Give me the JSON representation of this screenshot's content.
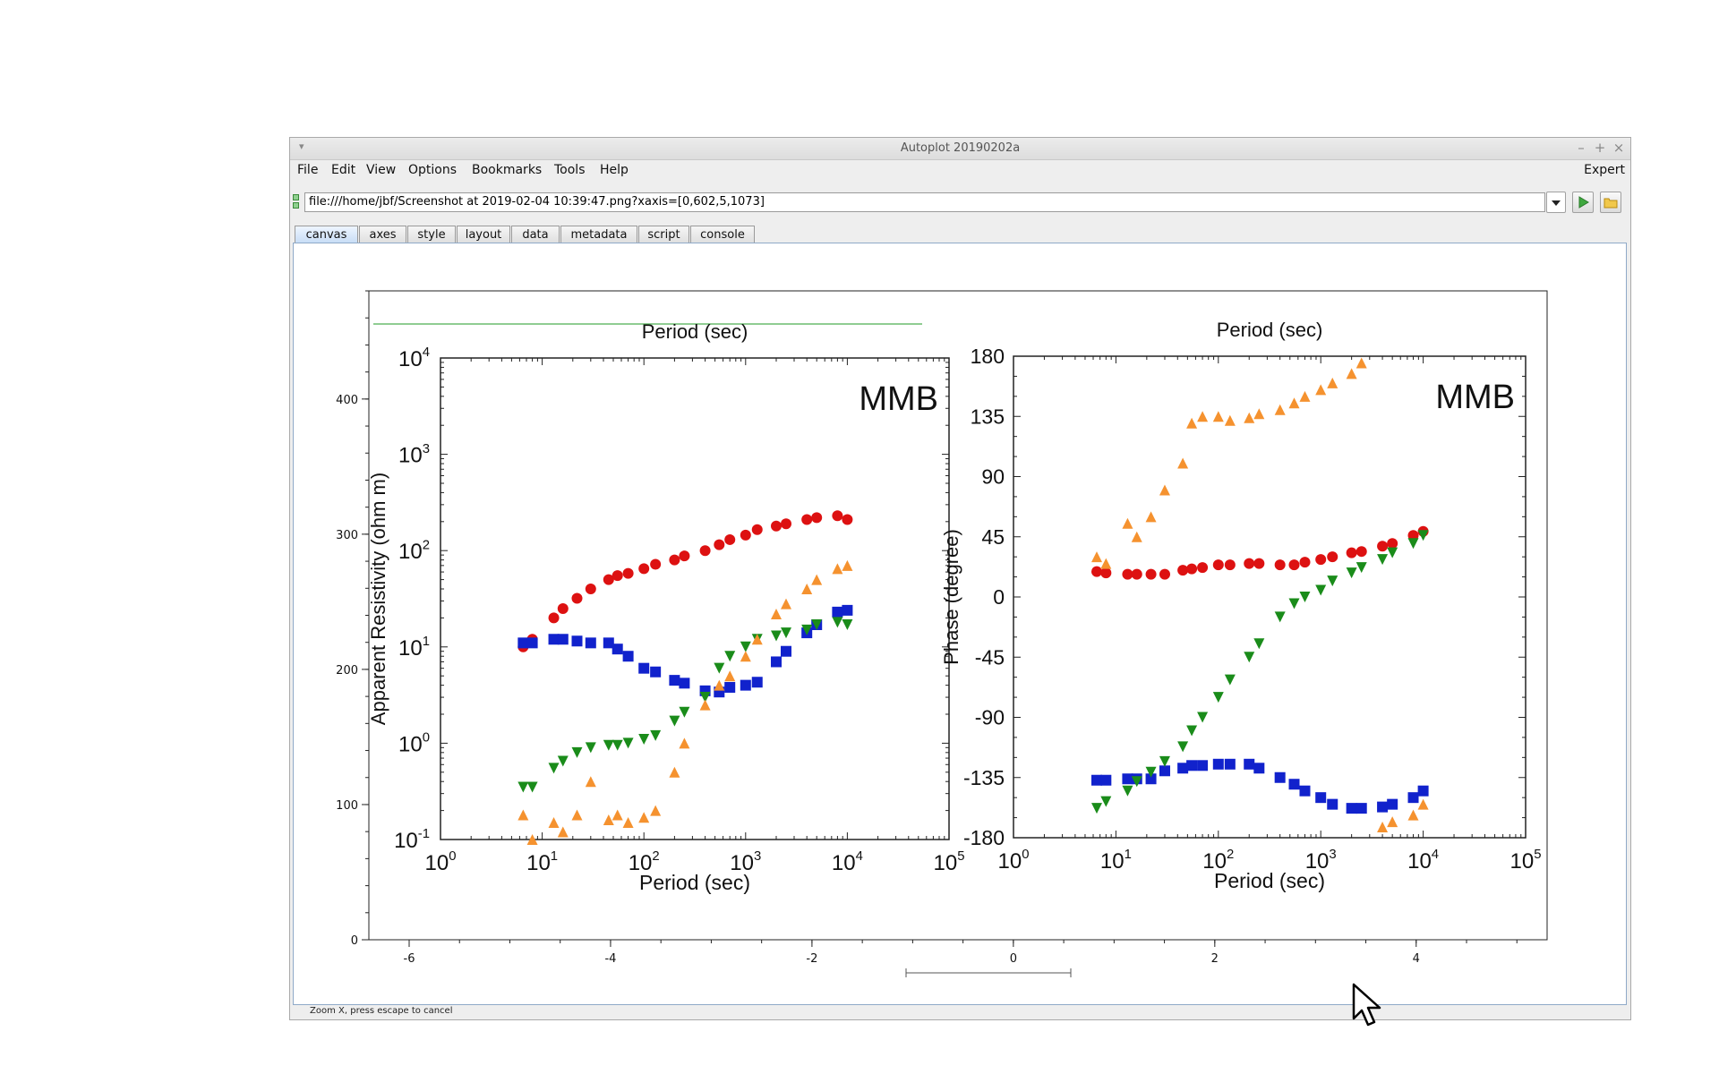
{
  "window": {
    "title": "Autoplot 20190202a",
    "controls": [
      "–",
      "+",
      "×"
    ]
  },
  "menubar": {
    "items": [
      "File",
      "Edit",
      "View",
      "Options",
      "Bookmarks",
      "Tools",
      "Help"
    ],
    "right_label": "Expert"
  },
  "url_bar": {
    "value": "file:///home/jbf/Screenshot at 2019-02-04 10:39:47.png?xaxis=[0,602,5,1073]"
  },
  "tabs": [
    {
      "label": "canvas",
      "selected": true
    },
    {
      "label": "axes"
    },
    {
      "label": "style"
    },
    {
      "label": "layout"
    },
    {
      "label": "data"
    },
    {
      "label": "metadata"
    },
    {
      "label": "script"
    },
    {
      "label": "console"
    }
  ],
  "status": {
    "text": "Zoom X, press escape to cancel"
  },
  "chart_data": {
    "type": "image",
    "x_ticks": [
      "-6",
      "-4",
      "-2",
      "0",
      "2",
      "4"
    ],
    "y_ticks": [
      "0",
      "100",
      "200",
      "300",
      "400"
    ],
    "xlim": [
      -6.4,
      5.3
    ],
    "ylim": [
      0,
      480
    ],
    "embedded_image": {
      "left_plot": {
        "type": "scatter",
        "title": "MMB",
        "top_label": "Period (sec)",
        "xlabel": "Period (sec)",
        "ylabel": "Apparent Resistivity (ohm m)",
        "x_scale": "log",
        "y_scale": "log",
        "x_ticks": [
          "10^0",
          "10^1",
          "10^2",
          "10^3",
          "10^4",
          "10^5"
        ],
        "y_ticks": [
          "10^-1",
          "10^0",
          "10^1",
          "10^2",
          "10^3",
          "10^4"
        ],
        "series": [
          {
            "color": "#dd1111",
            "marker": "circle",
            "points": [
              [
                6.5,
                10
              ],
              [
                8,
                12
              ],
              [
                13,
                20
              ],
              [
                16,
                25
              ],
              [
                22,
                32
              ],
              [
                30,
                40
              ],
              [
                45,
                50
              ],
              [
                55,
                55
              ],
              [
                70,
                58
              ],
              [
                100,
                65
              ],
              [
                130,
                72
              ],
              [
                200,
                80
              ],
              [
                250,
                88
              ],
              [
                400,
                100
              ],
              [
                550,
                115
              ],
              [
                700,
                130
              ],
              [
                1000,
                145
              ],
              [
                1300,
                165
              ],
              [
                2000,
                180
              ],
              [
                2500,
                190
              ],
              [
                4000,
                210
              ],
              [
                5000,
                220
              ],
              [
                8000,
                230
              ],
              [
                10000,
                210
              ]
            ]
          },
          {
            "color": "#1122cc",
            "marker": "square",
            "points": [
              [
                6.5,
                11
              ],
              [
                8,
                11
              ],
              [
                13,
                12
              ],
              [
                16,
                12
              ],
              [
                22,
                11.5
              ],
              [
                30,
                11
              ],
              [
                45,
                11
              ],
              [
                55,
                9.5
              ],
              [
                70,
                8
              ],
              [
                100,
                6
              ],
              [
                130,
                5.5
              ],
              [
                200,
                4.5
              ],
              [
                250,
                4.2
              ],
              [
                400,
                3.5
              ],
              [
                550,
                3.4
              ],
              [
                700,
                3.8
              ],
              [
                1000,
                4.0
              ],
              [
                1300,
                4.3
              ],
              [
                2000,
                7
              ],
              [
                2500,
                9
              ],
              [
                4000,
                14
              ],
              [
                5000,
                17
              ],
              [
                8000,
                23
              ],
              [
                10000,
                24
              ]
            ]
          },
          {
            "color": "#1a8c1a",
            "marker": "triangle-down",
            "points": [
              [
                6.5,
                0.35
              ],
              [
                8,
                0.35
              ],
              [
                13,
                0.55
              ],
              [
                16,
                0.65
              ],
              [
                22,
                0.8
              ],
              [
                30,
                0.9
              ],
              [
                45,
                0.95
              ],
              [
                55,
                0.95
              ],
              [
                70,
                1.0
              ],
              [
                100,
                1.1
              ],
              [
                130,
                1.2
              ],
              [
                200,
                1.7
              ],
              [
                250,
                2.1
              ],
              [
                400,
                3.0
              ],
              [
                550,
                6
              ],
              [
                700,
                8
              ],
              [
                1000,
                10
              ],
              [
                1300,
                12
              ],
              [
                2000,
                13
              ],
              [
                2500,
                14
              ],
              [
                4000,
                15
              ],
              [
                5000,
                17
              ],
              [
                8000,
                18
              ],
              [
                10000,
                17
              ]
            ]
          },
          {
            "color": "#f5922f",
            "marker": "triangle-up",
            "points": [
              [
                6.5,
                0.18
              ],
              [
                8,
                0.1
              ],
              [
                13,
                0.15
              ],
              [
                16,
                0.12
              ],
              [
                22,
                0.18
              ],
              [
                30,
                0.4
              ],
              [
                45,
                0.16
              ],
              [
                55,
                0.18
              ],
              [
                70,
                0.15
              ],
              [
                100,
                0.17
              ],
              [
                130,
                0.2
              ],
              [
                200,
                0.5
              ],
              [
                250,
                1.0
              ],
              [
                400,
                2.5
              ],
              [
                550,
                4
              ],
              [
                700,
                5
              ],
              [
                1000,
                8
              ],
              [
                1300,
                12
              ],
              [
                2000,
                22
              ],
              [
                2500,
                28
              ],
              [
                4000,
                40
              ],
              [
                5000,
                50
              ],
              [
                8000,
                65
              ],
              [
                10000,
                70
              ]
            ]
          }
        ]
      },
      "right_plot": {
        "type": "scatter",
        "title": "MMB",
        "top_label": "Period (sec)",
        "xlabel": "Period (sec)",
        "ylabel": "Phase (degree)",
        "x_scale": "log",
        "x_ticks": [
          "10^0",
          "10^1",
          "10^2",
          "10^3",
          "10^4",
          "10^5"
        ],
        "y_ticks": [
          "180",
          "135",
          "90",
          "45",
          "0",
          "-45",
          "-90",
          "-135",
          "-180"
        ],
        "ylim": [
          -180,
          180
        ],
        "series": [
          {
            "color": "#dd1111",
            "marker": "circle",
            "points": [
              [
                6.5,
                19
              ],
              [
                8,
                18
              ],
              [
                13,
                17
              ],
              [
                16,
                17
              ],
              [
                22,
                17
              ],
              [
                30,
                17
              ],
              [
                45,
                20
              ],
              [
                55,
                21
              ],
              [
                70,
                22
              ],
              [
                100,
                24
              ],
              [
                130,
                24
              ],
              [
                200,
                25
              ],
              [
                250,
                25
              ],
              [
                400,
                24
              ],
              [
                550,
                24
              ],
              [
                700,
                26
              ],
              [
                1000,
                28
              ],
              [
                1300,
                30
              ],
              [
                2000,
                33
              ],
              [
                2500,
                34
              ],
              [
                4000,
                38
              ],
              [
                5000,
                40
              ],
              [
                8000,
                46
              ],
              [
                10000,
                49
              ]
            ]
          },
          {
            "color": "#1122cc",
            "marker": "square",
            "points": [
              [
                6.5,
                -137
              ],
              [
                8,
                -137
              ],
              [
                13,
                -136
              ],
              [
                16,
                -136
              ],
              [
                22,
                -136
              ],
              [
                30,
                -130
              ],
              [
                45,
                -128
              ],
              [
                55,
                -126
              ],
              [
                70,
                -126
              ],
              [
                100,
                -125
              ],
              [
                130,
                -125
              ],
              [
                200,
                -125
              ],
              [
                250,
                -128
              ],
              [
                400,
                -135
              ],
              [
                550,
                -140
              ],
              [
                700,
                -145
              ],
              [
                1000,
                -150
              ],
              [
                1300,
                -155
              ],
              [
                2000,
                -158
              ],
              [
                2500,
                -158
              ],
              [
                4000,
                -157
              ],
              [
                5000,
                -155
              ],
              [
                8000,
                -150
              ],
              [
                10000,
                -145
              ]
            ]
          },
          {
            "color": "#1a8c1a",
            "marker": "triangle-down",
            "points": [
              [
                6.5,
                -158
              ],
              [
                8,
                -153
              ],
              [
                13,
                -145
              ],
              [
                16,
                -138
              ],
              [
                22,
                -131
              ],
              [
                30,
                -123
              ],
              [
                45,
                -112
              ],
              [
                55,
                -100
              ],
              [
                70,
                -90
              ],
              [
                100,
                -75
              ],
              [
                130,
                -62
              ],
              [
                200,
                -45
              ],
              [
                250,
                -35
              ],
              [
                400,
                -15
              ],
              [
                550,
                -5
              ],
              [
                700,
                0
              ],
              [
                1000,
                5
              ],
              [
                1300,
                12
              ],
              [
                2000,
                18
              ],
              [
                2500,
                22
              ],
              [
                4000,
                28
              ],
              [
                5000,
                33
              ],
              [
                8000,
                40
              ],
              [
                10000,
                46
              ]
            ]
          },
          {
            "color": "#f5922f",
            "marker": "triangle-up",
            "points": [
              [
                6.5,
                30
              ],
              [
                8,
                25
              ],
              [
                13,
                55
              ],
              [
                16,
                45
              ],
              [
                22,
                60
              ],
              [
                30,
                80
              ],
              [
                45,
                100
              ],
              [
                55,
                130
              ],
              [
                70,
                135
              ],
              [
                100,
                135
              ],
              [
                130,
                132
              ],
              [
                200,
                134
              ],
              [
                250,
                137
              ],
              [
                400,
                140
              ],
              [
                550,
                145
              ],
              [
                700,
                150
              ],
              [
                1000,
                155
              ],
              [
                1300,
                160
              ],
              [
                2000,
                167
              ],
              [
                2500,
                175
              ],
              [
                4000,
                -172
              ],
              [
                5000,
                -168
              ],
              [
                8000,
                -163
              ],
              [
                10000,
                -155
              ]
            ]
          }
        ]
      }
    }
  }
}
